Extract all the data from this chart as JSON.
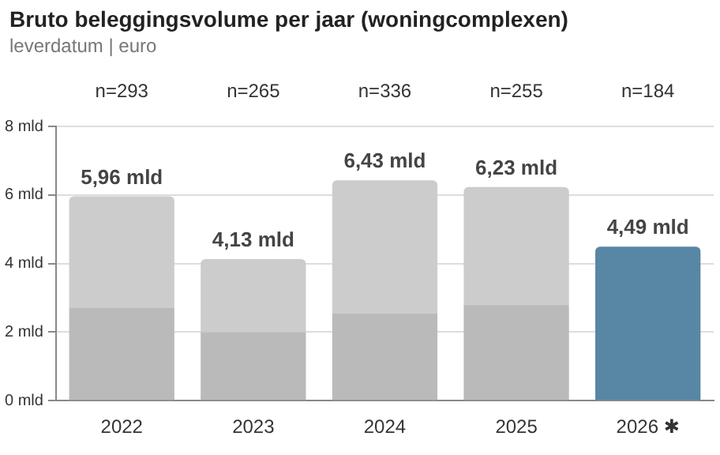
{
  "chart_data": {
    "type": "bar",
    "title": "Bruto beleggingsvolume per jaar (woningcomplexen)",
    "subtitle": "leverdatum | euro",
    "categories": [
      "2022",
      "2023",
      "2024",
      "2025",
      "2026 ✱"
    ],
    "stacked": true,
    "series": [
      {
        "color": "#bababa",
        "values": [
          2.7,
          2.0,
          2.55,
          2.8,
          null
        ]
      },
      {
        "color": "#cccccc",
        "values": [
          3.26,
          2.13,
          3.88,
          3.43,
          null
        ]
      },
      {
        "color": "#5886a5",
        "values": [
          null,
          null,
          null,
          null,
          4.49
        ]
      }
    ],
    "totals": [
      "5,96 mld",
      "4,13 mld",
      "6,43 mld",
      "6,23 mld",
      "4,49 mld"
    ],
    "annotations": [
      "n=293",
      "n=265",
      "n=336",
      "n=255",
      "n=184"
    ],
    "ylim": [
      0,
      8
    ],
    "yticks": [
      {
        "value": 0,
        "label": "0 mld"
      },
      {
        "value": 2,
        "label": "2 mld"
      },
      {
        "value": 4,
        "label": "4 mld"
      },
      {
        "value": 6,
        "label": "6 mld"
      },
      {
        "value": 8,
        "label": "8 mld"
      }
    ],
    "grid": "y",
    "legend": false
  }
}
